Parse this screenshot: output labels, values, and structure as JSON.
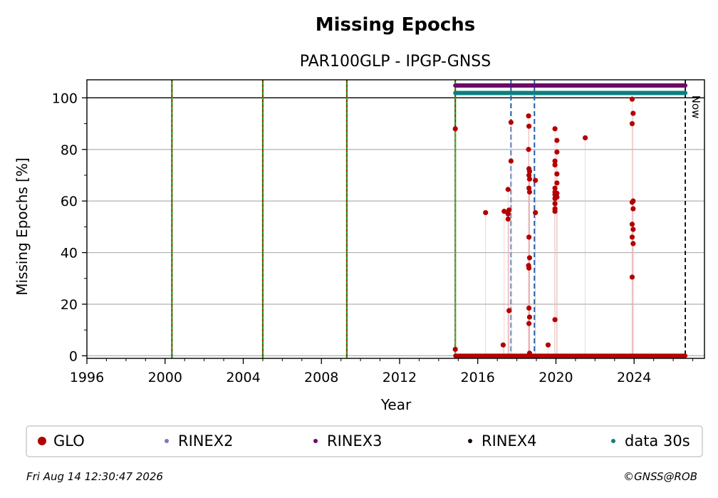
{
  "chart_data": {
    "type": "scatter",
    "title": "Missing Epochs",
    "subtitle": "PAR100GLP - IPGP-GNSS",
    "xlabel": "Year",
    "ylabel": "Missing Epochs [%]",
    "xlim": [
      1996,
      2027.6
    ],
    "ylim": [
      -1,
      107
    ],
    "x_ticks": [
      1996,
      2000,
      2004,
      2008,
      2012,
      2016,
      2020,
      2024
    ],
    "y_ticks": [
      0,
      20,
      40,
      60,
      80,
      100
    ],
    "grid": "horizontal",
    "legend_position": "bottom",
    "now_label": "Now",
    "now_year": 2026.62,
    "reference_line_y": 100,
    "event_lines": [
      {
        "x": 2000.35,
        "style": "green-red-dashed"
      },
      {
        "x": 2005.0,
        "style": "green-red-dashed"
      },
      {
        "x": 2009.3,
        "style": "green-red-dashed"
      },
      {
        "x": 2014.85,
        "style": "green-red-dashed"
      },
      {
        "x": 2017.7,
        "style": "blue-dashed"
      },
      {
        "x": 2018.9,
        "style": "blue-dashed"
      }
    ],
    "bands": [
      {
        "name": "RINEX3",
        "y": 104.8,
        "start": 2014.85,
        "end": 2026.62,
        "color": "#6b0a6b"
      },
      {
        "name": "data 30s",
        "y": 101.9,
        "start": 2014.85,
        "end": 2026.62,
        "color": "#0a8080"
      }
    ],
    "zero_baseline": {
      "name": "GLO",
      "start": 2014.85,
      "end": 2026.62,
      "value": 0
    },
    "series": [
      {
        "name": "GLO",
        "color": "#b30000",
        "points": [
          [
            2014.85,
            88
          ],
          [
            2014.85,
            2.5
          ],
          [
            2016.4,
            55.5
          ],
          [
            2017.3,
            4.2
          ],
          [
            2017.35,
            56
          ],
          [
            2017.55,
            64.5
          ],
          [
            2017.55,
            55
          ],
          [
            2017.55,
            53
          ],
          [
            2017.6,
            56.5
          ],
          [
            2017.6,
            17.5
          ],
          [
            2017.7,
            90.5
          ],
          [
            2017.7,
            75.5
          ],
          [
            2018.6,
            93
          ],
          [
            2018.62,
            89
          ],
          [
            2018.6,
            80
          ],
          [
            2018.62,
            72.5
          ],
          [
            2018.65,
            71.5
          ],
          [
            2018.62,
            70
          ],
          [
            2018.65,
            68.5
          ],
          [
            2018.62,
            65
          ],
          [
            2018.65,
            63.5
          ],
          [
            2018.62,
            46
          ],
          [
            2018.65,
            38
          ],
          [
            2018.6,
            35
          ],
          [
            2018.62,
            34
          ],
          [
            2018.62,
            18.5
          ],
          [
            2018.65,
            15
          ],
          [
            2018.62,
            12.5
          ],
          [
            2018.65,
            1
          ],
          [
            2018.95,
            68
          ],
          [
            2018.95,
            55.5
          ],
          [
            2019.6,
            4.2
          ],
          [
            2019.95,
            88
          ],
          [
            2020.05,
            83.5
          ],
          [
            2020.05,
            79
          ],
          [
            2019.95,
            75.5
          ],
          [
            2019.95,
            74
          ],
          [
            2020.05,
            70.5
          ],
          [
            2020.05,
            67
          ],
          [
            2019.95,
            65
          ],
          [
            2019.95,
            63.5
          ],
          [
            2020.05,
            63
          ],
          [
            2019.95,
            62.5
          ],
          [
            2020.05,
            61.5
          ],
          [
            2019.95,
            61
          ],
          [
            2019.95,
            59
          ],
          [
            2019.95,
            57
          ],
          [
            2019.95,
            56
          ],
          [
            2019.95,
            14
          ],
          [
            2021.5,
            84.5
          ],
          [
            2023.9,
            99.5
          ],
          [
            2023.95,
            94
          ],
          [
            2023.9,
            90
          ],
          [
            2023.95,
            60
          ],
          [
            2023.9,
            59.5
          ],
          [
            2023.95,
            57
          ],
          [
            2023.9,
            51
          ],
          [
            2023.95,
            49
          ],
          [
            2023.9,
            46
          ],
          [
            2023.95,
            43.5
          ],
          [
            2023.9,
            30.5
          ]
        ]
      }
    ],
    "legend": [
      {
        "label": "GLO",
        "color": "#b30000",
        "size": "large"
      },
      {
        "label": "RINEX2",
        "color": "#7b7bbf",
        "size": "small"
      },
      {
        "label": "RINEX3",
        "color": "#6b0a6b",
        "size": "small"
      },
      {
        "label": "RINEX4",
        "color": "#1a001a",
        "size": "small"
      },
      {
        "label": "data 30s",
        "color": "#0a8080",
        "size": "small"
      }
    ]
  },
  "footer": {
    "timestamp": "Fri Aug 14 12:30:47 2026",
    "credit": "©GNSS@ROB"
  }
}
